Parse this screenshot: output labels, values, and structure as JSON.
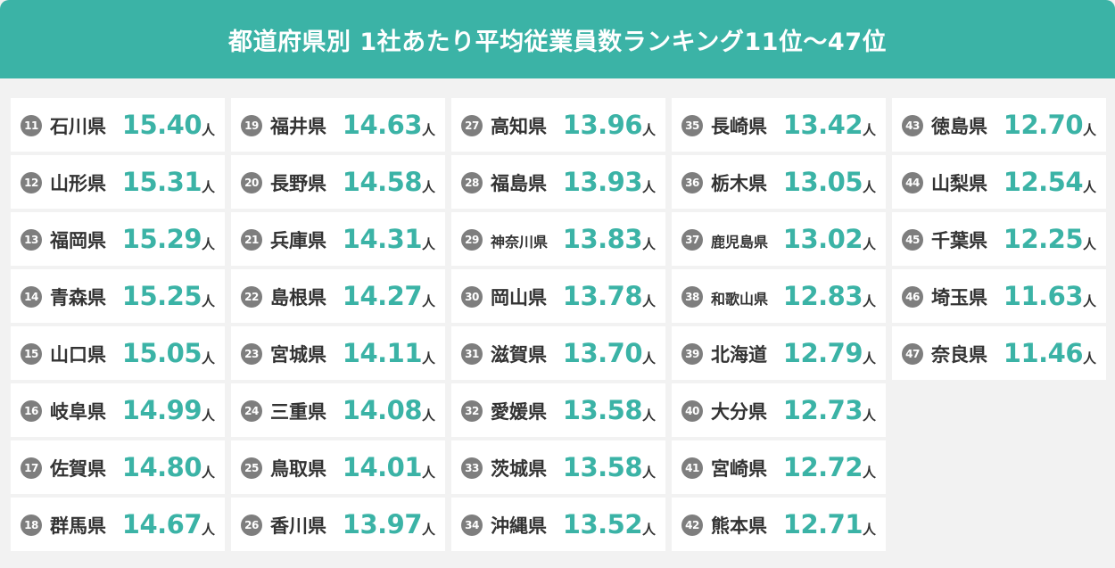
{
  "title": "都道府県別 1社あたり平均従業員数ランキング11位〜47位",
  "unit_label": "人",
  "colors": {
    "accent": "#3bb3a6",
    "badge": "#7e7e7e",
    "text": "#333333",
    "background": "#f2f2f2"
  },
  "columns": [
    [
      {
        "rank": "11",
        "prefecture": "石川県",
        "value": "15.40"
      },
      {
        "rank": "12",
        "prefecture": "山形県",
        "value": "15.31"
      },
      {
        "rank": "13",
        "prefecture": "福岡県",
        "value": "15.29"
      },
      {
        "rank": "14",
        "prefecture": "青森県",
        "value": "15.25"
      },
      {
        "rank": "15",
        "prefecture": "山口県",
        "value": "15.05"
      },
      {
        "rank": "16",
        "prefecture": "岐阜県",
        "value": "14.99"
      },
      {
        "rank": "17",
        "prefecture": "佐賀県",
        "value": "14.80"
      },
      {
        "rank": "18",
        "prefecture": "群馬県",
        "value": "14.67"
      }
    ],
    [
      {
        "rank": "19",
        "prefecture": "福井県",
        "value": "14.63"
      },
      {
        "rank": "20",
        "prefecture": "長野県",
        "value": "14.58"
      },
      {
        "rank": "21",
        "prefecture": "兵庫県",
        "value": "14.31"
      },
      {
        "rank": "22",
        "prefecture": "島根県",
        "value": "14.27"
      },
      {
        "rank": "23",
        "prefecture": "宮城県",
        "value": "14.11"
      },
      {
        "rank": "24",
        "prefecture": "三重県",
        "value": "14.08"
      },
      {
        "rank": "25",
        "prefecture": "鳥取県",
        "value": "14.01"
      },
      {
        "rank": "26",
        "prefecture": "香川県",
        "value": "13.97"
      }
    ],
    [
      {
        "rank": "27",
        "prefecture": "高知県",
        "value": "13.96"
      },
      {
        "rank": "28",
        "prefecture": "福島県",
        "value": "13.93"
      },
      {
        "rank": "29",
        "prefecture": "神奈川県",
        "value": "13.83"
      },
      {
        "rank": "30",
        "prefecture": "岡山県",
        "value": "13.78"
      },
      {
        "rank": "31",
        "prefecture": "滋賀県",
        "value": "13.70"
      },
      {
        "rank": "32",
        "prefecture": "愛媛県",
        "value": "13.58"
      },
      {
        "rank": "33",
        "prefecture": "茨城県",
        "value": "13.58"
      },
      {
        "rank": "34",
        "prefecture": "沖縄県",
        "value": "13.52"
      }
    ],
    [
      {
        "rank": "35",
        "prefecture": "長崎県",
        "value": "13.42"
      },
      {
        "rank": "36",
        "prefecture": "栃木県",
        "value": "13.05"
      },
      {
        "rank": "37",
        "prefecture": "鹿児島県",
        "value": "13.02"
      },
      {
        "rank": "38",
        "prefecture": "和歌山県",
        "value": "12.83"
      },
      {
        "rank": "39",
        "prefecture": "北海道",
        "value": "12.79"
      },
      {
        "rank": "40",
        "prefecture": "大分県",
        "value": "12.73"
      },
      {
        "rank": "41",
        "prefecture": "宮崎県",
        "value": "12.72"
      },
      {
        "rank": "42",
        "prefecture": "熊本県",
        "value": "12.71"
      }
    ],
    [
      {
        "rank": "43",
        "prefecture": "徳島県",
        "value": "12.70"
      },
      {
        "rank": "44",
        "prefecture": "山梨県",
        "value": "12.54"
      },
      {
        "rank": "45",
        "prefecture": "千葉県",
        "value": "12.25"
      },
      {
        "rank": "46",
        "prefecture": "埼玉県",
        "value": "11.63"
      },
      {
        "rank": "47",
        "prefecture": "奈良県",
        "value": "11.46"
      }
    ]
  ]
}
